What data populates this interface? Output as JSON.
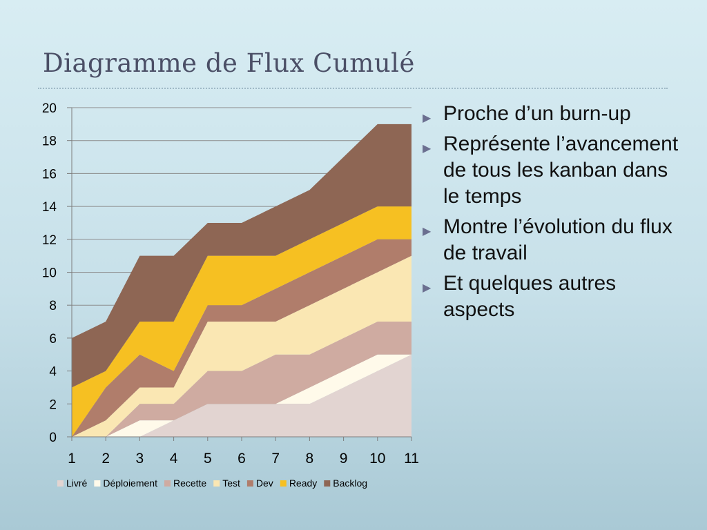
{
  "slide": {
    "title": "Diagramme de Flux Cumulé",
    "bullets": [
      "Proche d’un burn-up",
      "Représente l’avancement de tous les kanban dans le temps",
      "Montre l’évolution du flux de travail",
      "Et quelques autres aspects"
    ],
    "bullet_icon": "triangle-right-icon"
  },
  "chart_data": {
    "type": "area",
    "stacked": true,
    "title": "",
    "xlabel": "",
    "ylabel": "",
    "x": [
      1,
      2,
      3,
      4,
      5,
      6,
      7,
      8,
      9,
      10,
      11
    ],
    "ylim": [
      0,
      20
    ],
    "yticks": [
      0,
      2,
      4,
      6,
      8,
      10,
      12,
      14,
      16,
      18,
      20
    ],
    "grid": true,
    "legend_position": "bottom",
    "series": [
      {
        "name": "Livré",
        "color": "#e2d4d1",
        "values": [
          0,
          0,
          0,
          1,
          2,
          2,
          2,
          2,
          3,
          4,
          5
        ]
      },
      {
        "name": "Déploiement",
        "color": "#fffaea",
        "values": [
          0,
          0,
          1,
          0,
          0,
          0,
          0,
          1,
          1,
          1,
          0
        ]
      },
      {
        "name": "Recette",
        "color": "#cfaba1",
        "values": [
          0,
          0,
          1,
          1,
          2,
          2,
          3,
          2,
          2,
          2,
          2
        ]
      },
      {
        "name": "Test",
        "color": "#fae7b3",
        "values": [
          0,
          1,
          1,
          1,
          3,
          3,
          2,
          3,
          3,
          3,
          4
        ]
      },
      {
        "name": "Dev",
        "color": "#b07d6b",
        "values": [
          0,
          2,
          2,
          1,
          1,
          1,
          2,
          2,
          2,
          2,
          1
        ]
      },
      {
        "name": "Ready",
        "color": "#f6c022",
        "values": [
          3,
          1,
          2,
          3,
          3,
          3,
          2,
          2,
          2,
          2,
          2
        ]
      },
      {
        "name": "Backlog",
        "color": "#8e6654",
        "values": [
          3,
          3,
          4,
          4,
          2,
          2,
          3,
          3,
          4,
          5,
          5
        ]
      }
    ]
  }
}
